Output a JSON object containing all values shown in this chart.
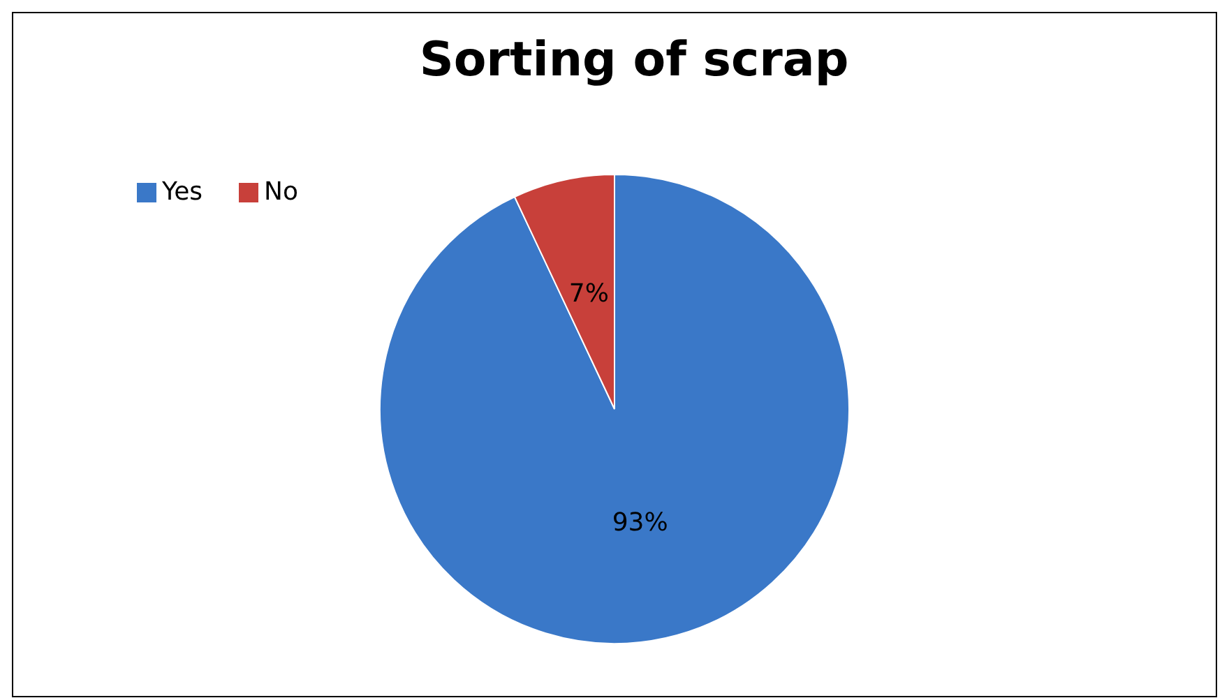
{
  "chart_data": {
    "type": "pie",
    "title": "Sorting of scrap",
    "categories": [
      "Yes",
      "No"
    ],
    "values": [
      93,
      7
    ],
    "colors": [
      "#3a78c8",
      "#c8403a"
    ],
    "value_labels": [
      "93%",
      "7%"
    ],
    "legend": "top left"
  }
}
